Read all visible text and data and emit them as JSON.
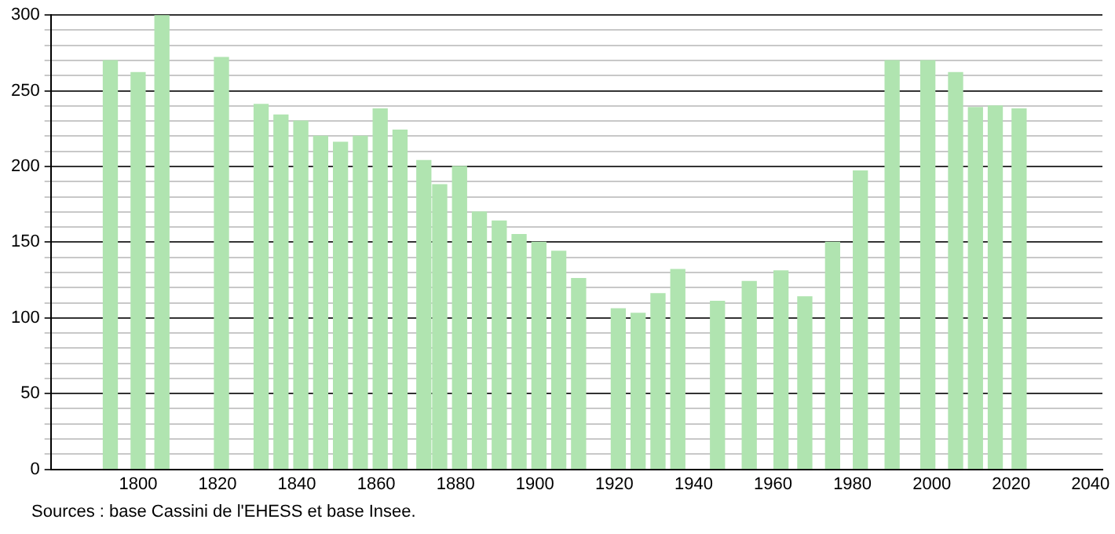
{
  "chart_data": {
    "type": "bar",
    "x": [
      1793,
      1800,
      1806,
      1821,
      1831,
      1836,
      1841,
      1846,
      1851,
      1856,
      1861,
      1866,
      1872,
      1876,
      1881,
      1886,
      1891,
      1896,
      1901,
      1906,
      1911,
      1921,
      1926,
      1931,
      1936,
      1946,
      1954,
      1962,
      1968,
      1975,
      1982,
      1990,
      1999,
      2006,
      2011,
      2016,
      2022
    ],
    "values": [
      270,
      262,
      300,
      272,
      241,
      234,
      230,
      220,
      216,
      220,
      238,
      224,
      204,
      188,
      200,
      170,
      164,
      155,
      150,
      144,
      126,
      106,
      103,
      116,
      132,
      111,
      124,
      131,
      114,
      150,
      197,
      270,
      270,
      262,
      239,
      240,
      238
    ],
    "color": "#b0e4b0",
    "xlim": [
      1778,
      2043
    ],
    "xticks": [
      1800,
      1820,
      1840,
      1860,
      1880,
      1900,
      1920,
      1940,
      1960,
      1980,
      2000,
      2020,
      2040
    ],
    "ylim": [
      0,
      300
    ],
    "yticks": [
      0,
      {
        "value": 10,
        "label": null
      },
      {
        "value": 20,
        "label": null
      },
      {
        "value": 30,
        "label": null
      },
      {
        "value": 40,
        "label": null
      },
      50,
      {
        "value": 60,
        "label": null
      },
      {
        "value": 70,
        "label": null
      },
      {
        "value": 80,
        "label": null
      },
      {
        "value": 90,
        "label": null
      },
      100,
      {
        "value": 110,
        "label": null
      },
      {
        "value": 120,
        "label": null
      },
      {
        "value": 130,
        "label": null
      },
      {
        "value": 140,
        "label": null
      },
      150,
      {
        "value": 160,
        "label": null
      },
      {
        "value": 170,
        "label": null
      },
      {
        "value": 180,
        "label": null
      },
      {
        "value": 190,
        "label": null
      },
      200,
      {
        "value": 210,
        "label": null
      },
      {
        "value": 220,
        "label": null
      },
      {
        "value": 230,
        "label": null
      },
      {
        "value": 240,
        "label": null
      },
      250,
      {
        "value": 260,
        "label": null
      },
      {
        "value": 270,
        "label": null
      },
      {
        "value": 280,
        "label": null
      },
      {
        "value": 290,
        "label": null
      },
      300
    ],
    "grid": "y",
    "annotations": [
      "Sources : base Cassini de l'EHESS et base Insee."
    ]
  }
}
